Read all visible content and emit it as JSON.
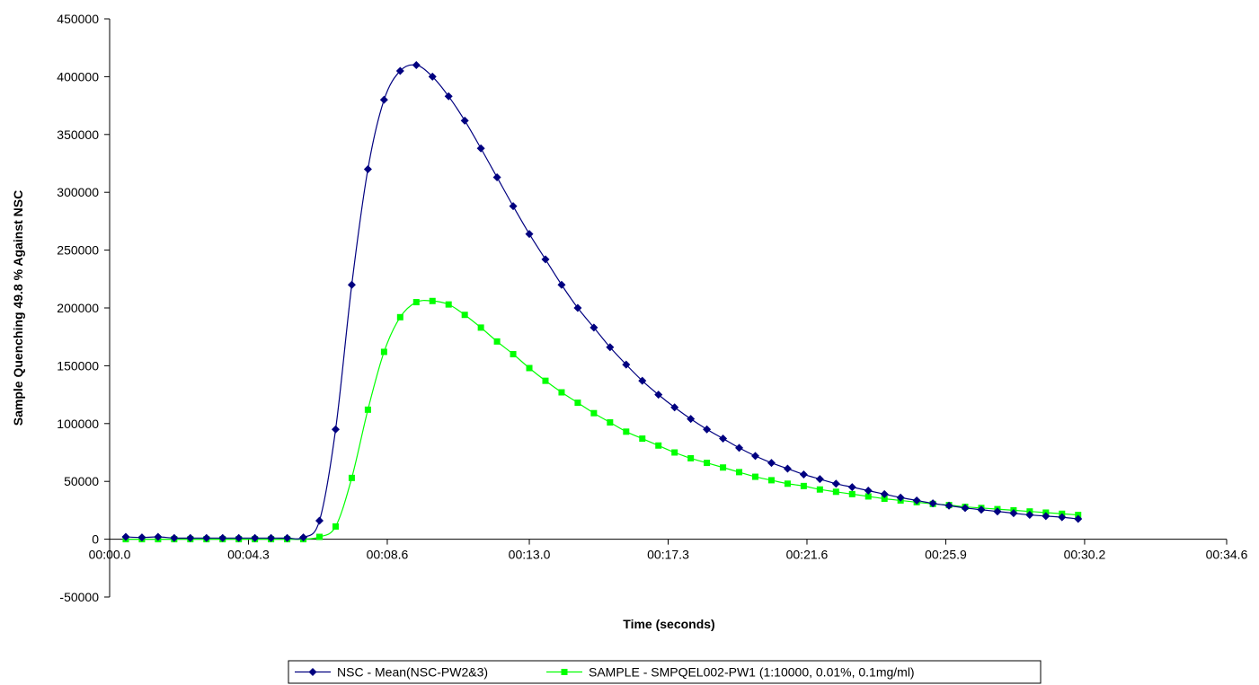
{
  "chart_data": {
    "type": "line",
    "title": "",
    "xlabel": "Time (seconds)",
    "ylabel": "Sample Quenching 49.8 % Against NSC",
    "xlim": [
      0,
      34.6
    ],
    "ylim": [
      -50000,
      450000
    ],
    "x_ticks": [
      0,
      4.3,
      8.6,
      13.0,
      17.3,
      21.6,
      25.9,
      30.2,
      34.6
    ],
    "x_tick_labels": [
      "00:00.0",
      "00:04.3",
      "00:08.6",
      "00:13.0",
      "00:17.3",
      "00:21.6",
      "00:25.9",
      "00:30.2",
      "00:34.6"
    ],
    "y_ticks": [
      -50000,
      0,
      50000,
      100000,
      150000,
      200000,
      250000,
      300000,
      350000,
      400000,
      450000
    ],
    "y_tick_labels": [
      "-50000",
      "0",
      "50000",
      "100000",
      "150000",
      "200000",
      "250000",
      "300000",
      "350000",
      "400000",
      "450000"
    ],
    "grid": false,
    "legend_position": "bottom",
    "x": [
      0.5,
      1.0,
      1.5,
      2.0,
      2.5,
      3.0,
      3.5,
      4.0,
      4.5,
      5.0,
      5.5,
      6.0,
      6.5,
      7.0,
      7.5,
      8.0,
      8.5,
      9.0,
      9.5,
      10.0,
      10.5,
      11.0,
      11.5,
      12.0,
      12.5,
      13.0,
      13.5,
      14.0,
      14.5,
      15.0,
      15.5,
      16.0,
      16.5,
      17.0,
      17.5,
      18.0,
      18.5,
      19.0,
      19.5,
      20.0,
      20.5,
      21.0,
      21.5,
      22.0,
      22.5,
      23.0,
      23.5,
      24.0,
      24.5,
      25.0,
      25.5,
      26.0,
      26.5,
      27.0,
      27.5,
      28.0,
      28.5,
      29.0,
      29.5,
      30.0
    ],
    "series": [
      {
        "name": "NSC - Mean(NSC-PW2&3)",
        "color": "#000080",
        "marker": "diamond",
        "values": [
          2000,
          1500,
          2000,
          1000,
          1000,
          1000,
          1000,
          1000,
          1000,
          1000,
          1000,
          1500,
          16000,
          95000,
          220000,
          320000,
          380000,
          405000,
          410000,
          400000,
          383000,
          362000,
          338000,
          313000,
          288000,
          264000,
          242000,
          220000,
          200000,
          183000,
          166000,
          151000,
          137000,
          125000,
          114000,
          104000,
          95000,
          87000,
          79000,
          72000,
          66000,
          61000,
          56000,
          52000,
          48000,
          45000,
          42000,
          39000,
          36000,
          33500,
          31000,
          29000,
          27000,
          25500,
          24000,
          22500,
          21000,
          20000,
          19000,
          17500
        ]
      },
      {
        "name": "SAMPLE - SMPQEL002-PW1 (1:10000, 0.01%, 0.1mg/ml)",
        "color": "#00ff00",
        "marker": "square",
        "values": [
          0,
          0,
          0,
          0,
          0,
          0,
          0,
          0,
          0,
          0,
          0,
          0,
          2000,
          11000,
          53000,
          112000,
          162000,
          192000,
          205000,
          206000,
          203000,
          194000,
          183000,
          171000,
          160000,
          148000,
          137000,
          127000,
          118000,
          109000,
          101000,
          93000,
          87000,
          81000,
          75000,
          70000,
          66000,
          62000,
          58000,
          54000,
          51000,
          48000,
          46000,
          43000,
          41000,
          39000,
          37000,
          35000,
          33500,
          32000,
          30500,
          29500,
          28000,
          27000,
          26000,
          25000,
          24000,
          23000,
          22000,
          21000
        ]
      }
    ]
  }
}
